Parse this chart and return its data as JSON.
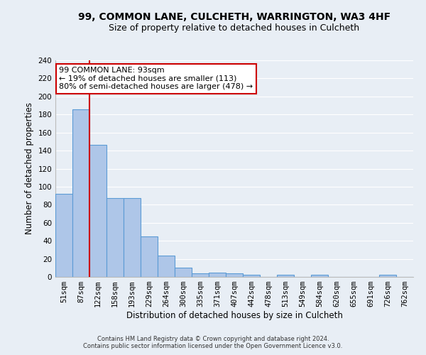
{
  "title1": "99, COMMON LANE, CULCHETH, WARRINGTON, WA3 4HF",
  "title2": "Size of property relative to detached houses in Culcheth",
  "xlabel": "Distribution of detached houses by size in Culcheth",
  "ylabel": "Number of detached properties",
  "footer1": "Contains HM Land Registry data © Crown copyright and database right 2024.",
  "footer2": "Contains public sector information licensed under the Open Government Licence v3.0.",
  "bar_labels": [
    "51sqm",
    "87sqm",
    "122sqm",
    "158sqm",
    "193sqm",
    "229sqm",
    "264sqm",
    "300sqm",
    "335sqm",
    "371sqm",
    "407sqm",
    "442sqm",
    "478sqm",
    "513sqm",
    "549sqm",
    "584sqm",
    "620sqm",
    "655sqm",
    "691sqm",
    "726sqm",
    "762sqm"
  ],
  "bar_values": [
    92,
    186,
    146,
    87,
    87,
    45,
    24,
    10,
    4,
    5,
    4,
    2,
    0,
    2,
    0,
    2,
    0,
    0,
    0,
    2,
    0
  ],
  "bar_color": "#aec6e8",
  "bar_edge_color": "#5b9bd5",
  "subject_line_color": "#cc0000",
  "annotation_text": "99 COMMON LANE: 93sqm\n← 19% of detached houses are smaller (113)\n80% of semi-detached houses are larger (478) →",
  "annotation_box_color": "#ffffff",
  "annotation_box_edge": "#cc0000",
  "ylim": [
    0,
    240
  ],
  "yticks": [
    0,
    20,
    40,
    60,
    80,
    100,
    120,
    140,
    160,
    180,
    200,
    220,
    240
  ],
  "bg_color": "#e8eef5",
  "grid_color": "#ffffff",
  "title1_fontsize": 10,
  "title2_fontsize": 9,
  "axis_label_fontsize": 8.5,
  "tick_fontsize": 7.5,
  "footer_fontsize": 6
}
